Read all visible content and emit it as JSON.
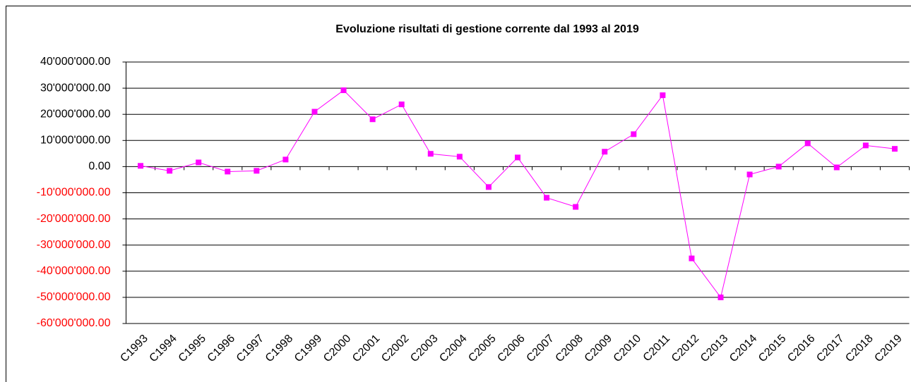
{
  "chart_data": {
    "type": "line",
    "title": "Evoluzione risultati di gestione corrente dal 1993 al 2019",
    "categories": [
      "C1993",
      "C1994",
      "C1995",
      "C1996",
      "C1997",
      "C1998",
      "C1999",
      "C2000",
      "C2001",
      "C2002",
      "C2003",
      "C2004",
      "C2005",
      "C2006",
      "C2007",
      "C2008",
      "C2009",
      "C2010",
      "C2011",
      "C2012",
      "C2013",
      "C2014",
      "C2015",
      "C2016",
      "C2017",
      "C2018",
      "C2019"
    ],
    "series": [
      {
        "color": "#ff00ff",
        "values": [
          300000,
          -1600000,
          1600000,
          -1900000,
          -1600000,
          2700000,
          21000000,
          29200000,
          18100000,
          23800000,
          4900000,
          3800000,
          -7800000,
          3500000,
          -11900000,
          -15400000,
          5700000,
          12400000,
          27300000,
          -35100000,
          -50000000,
          -3000000,
          0,
          8900000,
          -300000,
          8100000,
          6800000
        ]
      }
    ],
    "ylim": [
      -60000000,
      40000000
    ],
    "yticks": [
      {
        "value": 40000000,
        "label": "40'000'000.00"
      },
      {
        "value": 30000000,
        "label": "30'000'000.00"
      },
      {
        "value": 20000000,
        "label": "20'000'000.00"
      },
      {
        "value": 10000000,
        "label": "10'000'000.00"
      },
      {
        "value": 0,
        "label": "0.00"
      },
      {
        "value": -10000000,
        "label": "-10'000'000.00"
      },
      {
        "value": -20000000,
        "label": "-20'000'000.00"
      },
      {
        "value": -30000000,
        "label": "-30'000'000.00"
      },
      {
        "value": -40000000,
        "label": "-40'000'000.00"
      },
      {
        "value": -50000000,
        "label": "-50'000'000.00"
      },
      {
        "value": -60000000,
        "label": "-60'000'000.00"
      }
    ],
    "grid": true,
    "negative_tick_color": "#ff0000"
  }
}
